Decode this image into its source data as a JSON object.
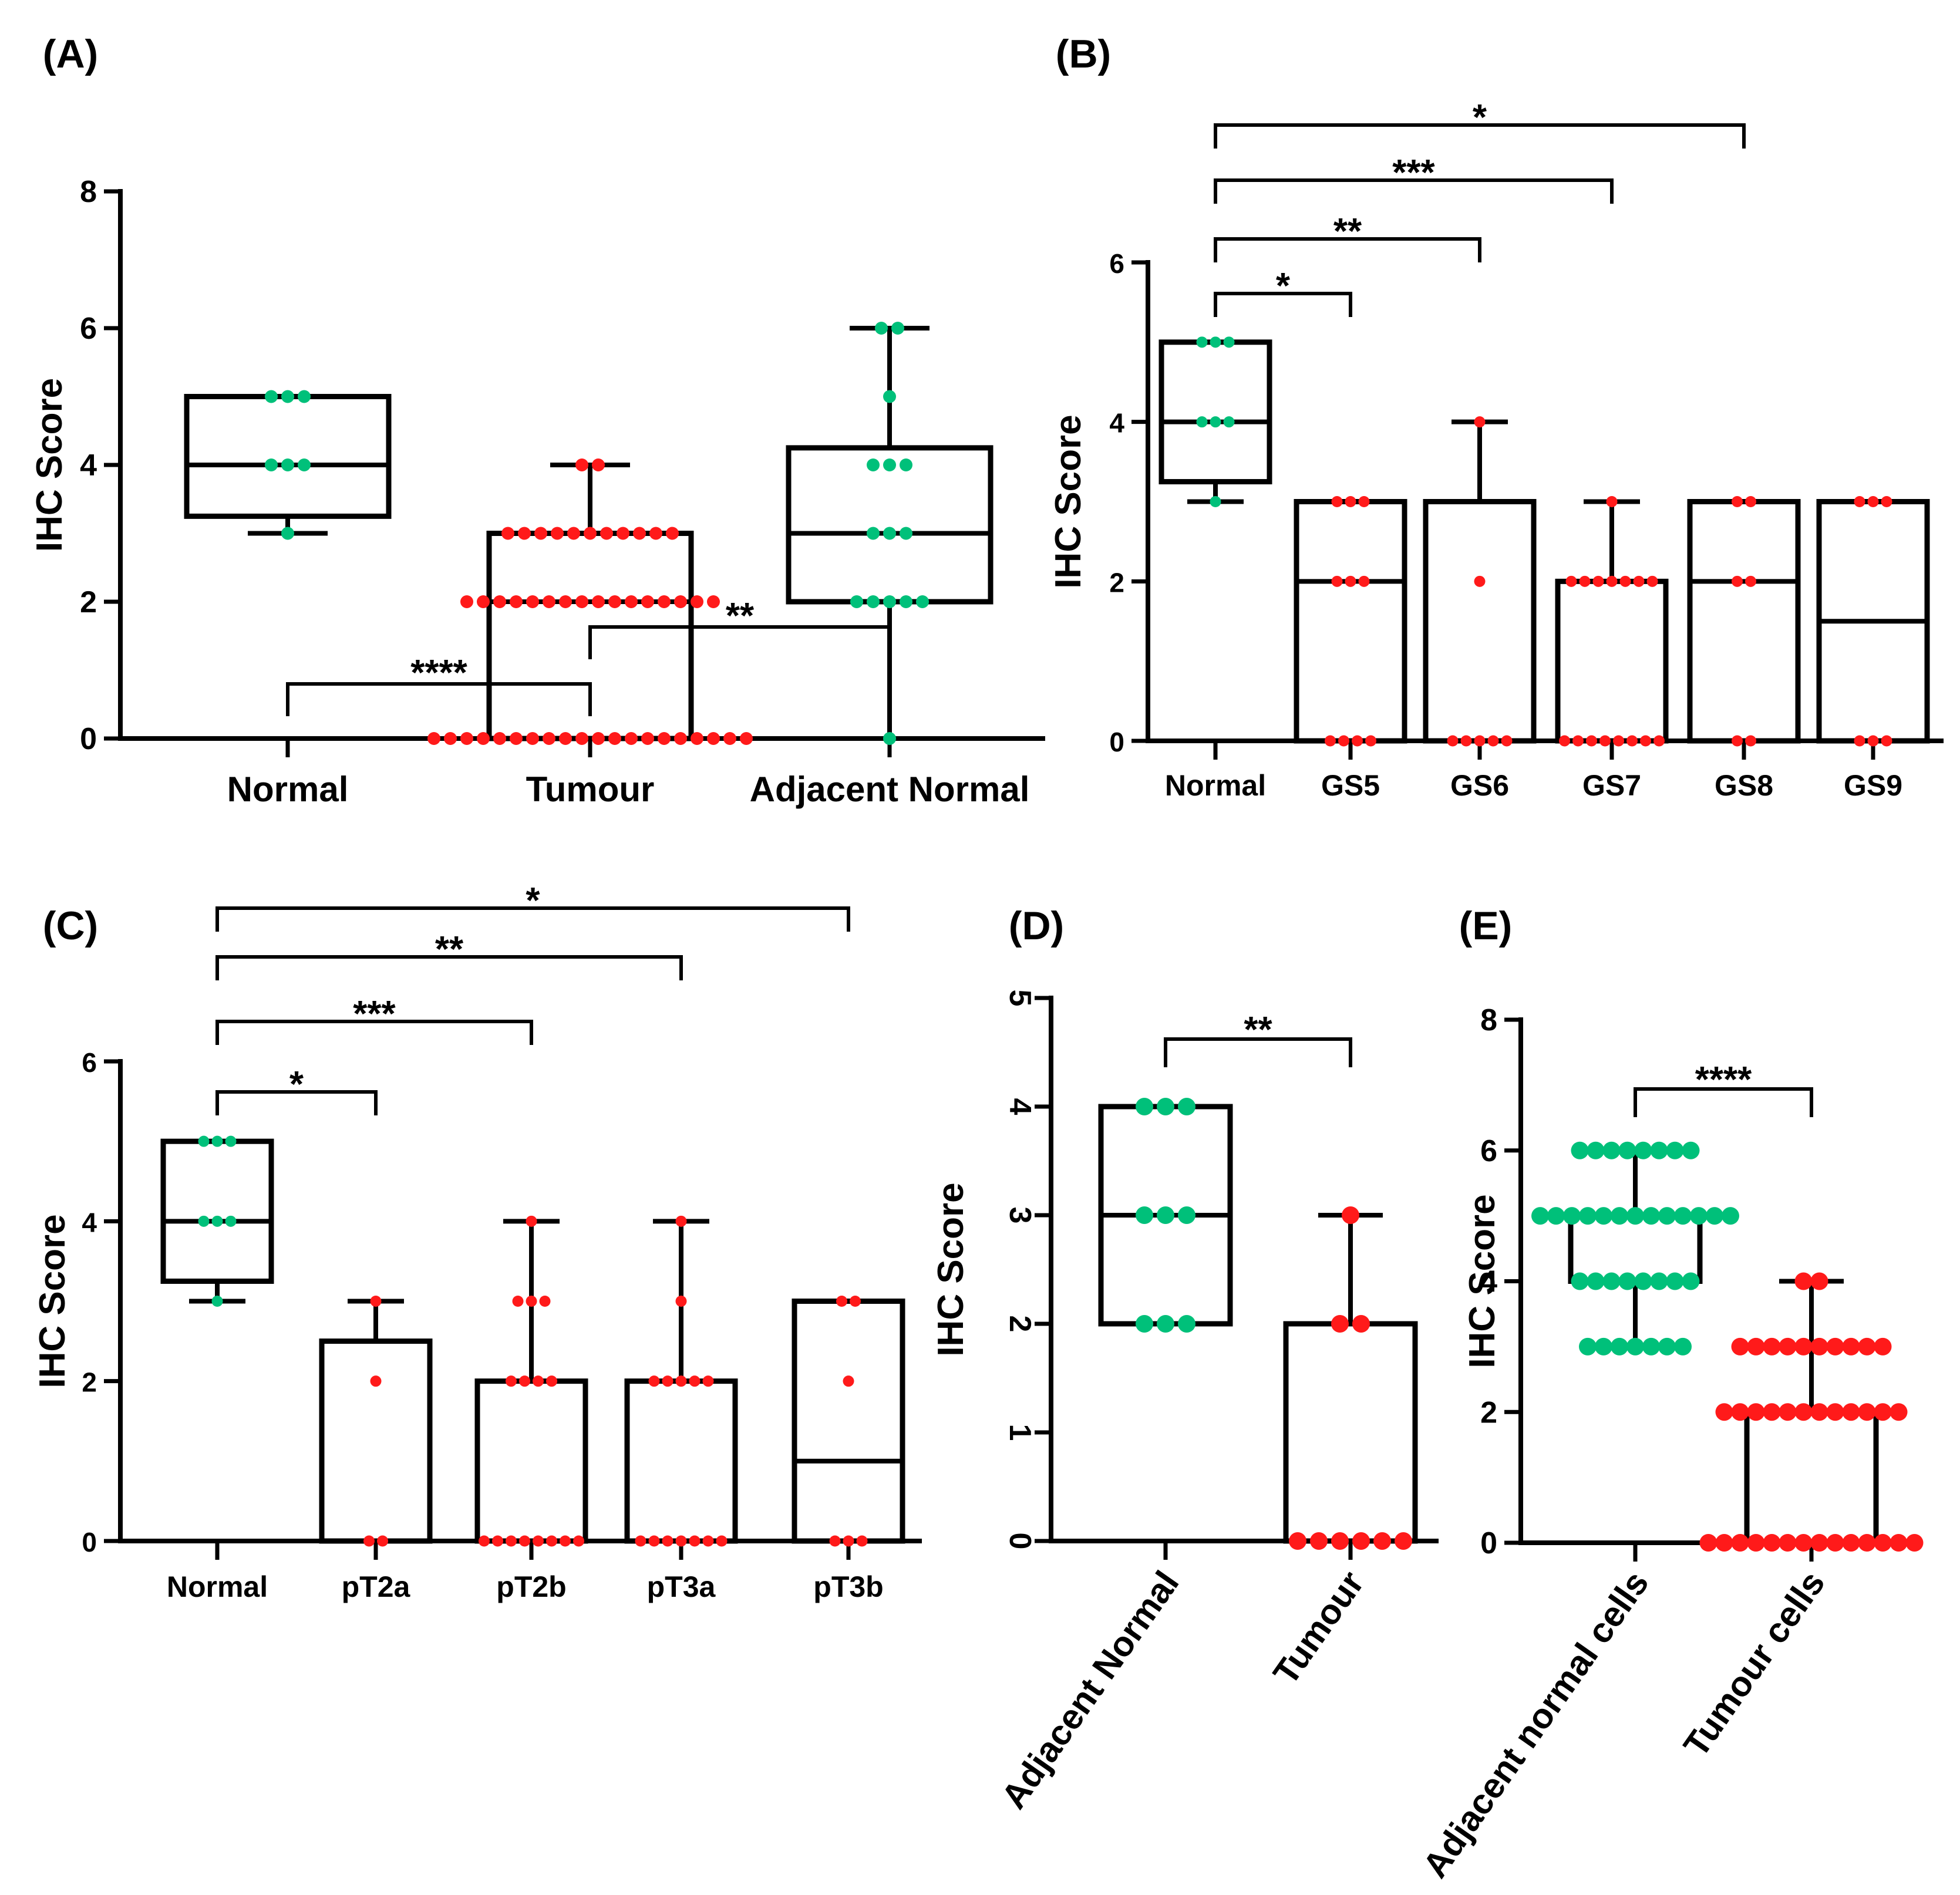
{
  "chart_data": [
    {
      "panel": "(A)",
      "type": "box",
      "ylabel": "IHC Score",
      "ylim": [
        0,
        8
      ],
      "yticks": [
        "0",
        "2",
        "4",
        "6",
        "8"
      ],
      "categories": [
        "Normal",
        "Tumour",
        "Adjacent Normal"
      ],
      "boxes": [
        {
          "category": "Normal",
          "min": 3,
          "q1": 3.25,
          "median": 4,
          "q3": 5,
          "max": 5,
          "color": "#00c07a",
          "points": [
            3,
            4,
            4,
            4,
            5,
            5,
            5
          ]
        },
        {
          "category": "Tumour",
          "min": 0,
          "q1": 0,
          "median": 2,
          "q3": 3,
          "max": 4,
          "color": "#ff1a1a",
          "points": [
            0,
            0,
            0,
            0,
            0,
            0,
            0,
            0,
            0,
            0,
            0,
            0,
            0,
            0,
            0,
            0,
            0,
            0,
            0,
            0,
            2,
            2,
            2,
            2,
            2,
            2,
            2,
            2,
            2,
            2,
            2,
            2,
            2,
            2,
            2,
            2,
            3,
            3,
            3,
            3,
            3,
            3,
            3,
            3,
            3,
            3,
            3,
            4,
            4
          ]
        },
        {
          "category": "Adjacent Normal",
          "min": 0,
          "q1": 2,
          "median": 3,
          "q3": 4.25,
          "max": 6,
          "color": "#00c07a",
          "points": [
            0,
            2,
            2,
            2,
            2,
            2,
            3,
            3,
            3,
            4,
            4,
            4,
            5,
            6,
            6
          ]
        }
      ],
      "comparisons": [
        {
          "from": "Normal",
          "to": "Tumour",
          "label": "****"
        },
        {
          "from": "Tumour",
          "to": "Adjacent Normal",
          "label": "**"
        }
      ]
    },
    {
      "panel": "(B)",
      "type": "box",
      "ylabel": "IHC Score",
      "ylim": [
        0,
        6
      ],
      "yticks": [
        "0",
        "2",
        "4",
        "6"
      ],
      "categories": [
        "Normal",
        "GS5",
        "GS6",
        "GS7",
        "GS8",
        "GS9"
      ],
      "boxes": [
        {
          "category": "Normal",
          "min": 3,
          "q1": 3.25,
          "median": 4,
          "q3": 5,
          "max": 5,
          "color": "#00c07a",
          "points": [
            3,
            4,
            4,
            4,
            5,
            5,
            5
          ]
        },
        {
          "category": "GS5",
          "min": 0,
          "q1": 0,
          "median": 2,
          "q3": 3,
          "max": 3,
          "color": "#ff1a1a",
          "points": [
            0,
            0,
            0,
            0,
            2,
            2,
            2,
            3,
            3,
            3
          ]
        },
        {
          "category": "GS6",
          "min": 0,
          "q1": 0,
          "median": 0,
          "q3": 3,
          "max": 4,
          "color": "#ff1a1a",
          "points": [
            0,
            0,
            0,
            0,
            0,
            2,
            4
          ]
        },
        {
          "category": "GS7",
          "min": 0,
          "q1": 0,
          "median": 0,
          "q3": 2,
          "max": 3,
          "color": "#ff1a1a",
          "points": [
            0,
            0,
            0,
            0,
            0,
            0,
            0,
            0,
            2,
            2,
            2,
            2,
            2,
            2,
            2,
            3
          ]
        },
        {
          "category": "GS8",
          "min": 0,
          "q1": 0,
          "median": 2,
          "q3": 3,
          "max": 3,
          "color": "#ff1a1a",
          "points": [
            0,
            0,
            2,
            2,
            3,
            3
          ]
        },
        {
          "category": "GS9",
          "min": 0,
          "q1": 0,
          "median": 1.5,
          "q3": 3,
          "max": 3,
          "color": "#ff1a1a",
          "points": [
            0,
            0,
            0,
            3,
            3,
            3
          ]
        }
      ],
      "comparisons": [
        {
          "from": "Normal",
          "to": "GS5",
          "label": "*"
        },
        {
          "from": "Normal",
          "to": "GS6",
          "label": "**"
        },
        {
          "from": "Normal",
          "to": "GS7",
          "label": "***"
        },
        {
          "from": "Normal",
          "to": "GS8",
          "label": "*"
        }
      ]
    },
    {
      "panel": "(C)",
      "type": "box",
      "ylabel": "IHC Score",
      "ylim": [
        0,
        6
      ],
      "yticks": [
        "0",
        "2",
        "4",
        "6"
      ],
      "categories": [
        "Normal",
        "pT2a",
        "pT2b",
        "pT3a",
        "pT3b"
      ],
      "boxes": [
        {
          "category": "Normal",
          "min": 3,
          "q1": 3.25,
          "median": 4,
          "q3": 5,
          "max": 5,
          "color": "#00c07a",
          "points": [
            3,
            4,
            4,
            4,
            5,
            5,
            5
          ]
        },
        {
          "category": "pT2a",
          "min": 0,
          "q1": 0,
          "median": 0,
          "q3": 2.5,
          "max": 3,
          "color": "#ff1a1a",
          "points": [
            0,
            0,
            2,
            3
          ]
        },
        {
          "category": "pT2b",
          "min": 0,
          "q1": 0,
          "median": 0,
          "q3": 2,
          "max": 4,
          "color": "#ff1a1a",
          "points": [
            0,
            0,
            0,
            0,
            0,
            0,
            0,
            0,
            2,
            2,
            2,
            2,
            3,
            3,
            3,
            4
          ]
        },
        {
          "category": "pT3a",
          "min": 0,
          "q1": 0,
          "median": 0,
          "q3": 2,
          "max": 4,
          "color": "#ff1a1a",
          "points": [
            0,
            0,
            0,
            0,
            0,
            0,
            0,
            2,
            2,
            2,
            2,
            2,
            3,
            4
          ]
        },
        {
          "category": "pT3b",
          "min": 0,
          "q1": 0,
          "median": 1,
          "q3": 3,
          "max": 3,
          "color": "#ff1a1a",
          "points": [
            0,
            0,
            0,
            2,
            3,
            3
          ]
        }
      ],
      "comparisons": [
        {
          "from": "Normal",
          "to": "pT2a",
          "label": "*"
        },
        {
          "from": "Normal",
          "to": "pT2b",
          "label": "***"
        },
        {
          "from": "Normal",
          "to": "pT3a",
          "label": "**"
        },
        {
          "from": "Normal",
          "to": "pT3b",
          "label": "*"
        }
      ]
    },
    {
      "panel": "(D)",
      "type": "box",
      "ylabel": "IHC Score",
      "ylim": [
        0,
        5
      ],
      "yticks": [
        "0",
        "1",
        "2",
        "3",
        "4",
        "5"
      ],
      "categories": [
        "Adjacent Normal",
        "Tumour"
      ],
      "boxes": [
        {
          "category": "Adjacent Normal",
          "min": 2,
          "q1": 2,
          "median": 3,
          "q3": 4,
          "max": 4,
          "color": "#00c07a",
          "points": [
            2,
            2,
            2,
            3,
            3,
            3,
            4,
            4,
            4
          ]
        },
        {
          "category": "Tumour",
          "min": 0,
          "q1": 0,
          "median": 0,
          "q3": 2,
          "max": 3,
          "color": "#ff1a1a",
          "points": [
            0,
            0,
            0,
            0,
            0,
            0,
            2,
            2,
            3
          ]
        }
      ],
      "comparisons": [
        {
          "from": "Adjacent Normal",
          "to": "Tumour",
          "label": "**"
        }
      ]
    },
    {
      "panel": "(E)",
      "type": "box",
      "ylabel": "IHC Score",
      "ylim": [
        0,
        8
      ],
      "yticks": [
        "0",
        "2",
        "4",
        "6",
        "8"
      ],
      "categories": [
        "Adjacent normal cells",
        "Tumour cells"
      ],
      "boxes": [
        {
          "category": "Adjacent normal cells",
          "min": 3,
          "q1": 4,
          "median": 5,
          "q3": 5,
          "max": 6,
          "color": "#00c07a",
          "points": [
            3,
            3,
            3,
            3,
            3,
            3,
            3,
            4,
            4,
            4,
            4,
            4,
            4,
            4,
            4,
            5,
            5,
            5,
            5,
            5,
            5,
            5,
            5,
            5,
            5,
            5,
            5,
            5,
            6,
            6,
            6,
            6,
            6,
            6,
            6,
            6
          ]
        },
        {
          "category": "Tumour cells",
          "min": 0,
          "q1": 0,
          "median": 0,
          "q3": 2,
          "max": 4,
          "color": "#ff1a1a",
          "points": [
            0,
            0,
            0,
            0,
            0,
            0,
            0,
            0,
            0,
            0,
            0,
            0,
            0,
            0,
            2,
            2,
            2,
            2,
            2,
            2,
            2,
            2,
            2,
            2,
            2,
            2,
            3,
            3,
            3,
            3,
            3,
            3,
            3,
            3,
            3,
            3,
            4,
            4
          ]
        }
      ],
      "comparisons": [
        {
          "from": "Adjacent normal cells",
          "to": "Tumour cells",
          "label": "****"
        }
      ]
    }
  ]
}
